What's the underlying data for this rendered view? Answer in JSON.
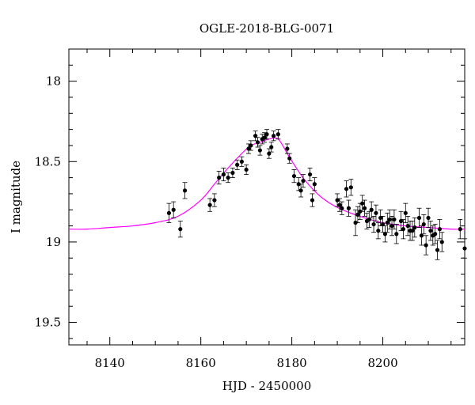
{
  "chart_data": {
    "type": "scatter",
    "title": "OGLE-2018-BLG-0071",
    "xlabel": "HJD - 2450000",
    "ylabel": "I magnitude",
    "xlim": [
      8131,
      8218
    ],
    "ylim": [
      19.64,
      17.8
    ],
    "y_inverted": true,
    "grid": false,
    "xticks": [
      8140,
      8160,
      8180,
      8200
    ],
    "xtick_labels": [
      "8140",
      "8160",
      "8180",
      "8200"
    ],
    "yticks": [
      18,
      18.5,
      19,
      19.5
    ],
    "ytick_labels": [
      "18",
      "18.5",
      "19",
      "19.5"
    ],
    "model_color": "#ff00ff",
    "point_color": "#000000",
    "model_curve": {
      "x": [
        8131,
        8135,
        8140,
        8145,
        8150,
        8155,
        8160,
        8163,
        8166,
        8169,
        8171,
        8173,
        8175,
        8177,
        8179,
        8181,
        8183,
        8186,
        8189,
        8192,
        8196,
        8200,
        8205,
        8210,
        8215,
        8218
      ],
      "y": [
        18.92,
        18.92,
        18.91,
        18.9,
        18.88,
        18.84,
        18.74,
        18.64,
        18.54,
        18.45,
        18.4,
        18.38,
        18.36,
        18.36,
        18.45,
        18.54,
        18.62,
        18.71,
        18.77,
        18.81,
        18.85,
        18.88,
        18.9,
        18.91,
        18.92,
        18.92
      ]
    },
    "series": [
      {
        "x": [
          8153,
          8154,
          8155.5,
          8156.5,
          8162,
          8163,
          8164,
          8165,
          8166,
          8167,
          8168,
          8169,
          8170,
          8170.5,
          8171,
          8172,
          8172.5,
          8173,
          8173.5,
          8174,
          8174.5,
          8175,
          8175.5,
          8176,
          8177,
          8179,
          8179.5,
          8180.5,
          8181.5,
          8182,
          8182.5,
          8184,
          8184.5,
          8185,
          8190,
          8190.5,
          8191,
          8192,
          8192.5,
          8193,
          8194,
          8194.5,
          8195,
          8195.5,
          8196,
          8196.5,
          8197,
          8197.5,
          8198,
          8198.5,
          8199,
          8199.5,
          8200,
          8200.5,
          8201,
          8201.5,
          8202,
          8202.5,
          8203,
          8204,
          8204.5,
          8205,
          8205.5,
          8206,
          8206.5,
          8207,
          8208,
          8208.5,
          8209,
          8209.5,
          8210,
          8210.5,
          8211,
          8211.5,
          8212,
          8212.5,
          8213,
          8217,
          8218
        ],
        "y": [
          18.82,
          18.8,
          18.92,
          18.68,
          18.77,
          18.74,
          18.6,
          18.58,
          18.6,
          18.57,
          18.52,
          18.5,
          18.55,
          18.42,
          18.4,
          18.34,
          18.38,
          18.43,
          18.36,
          18.35,
          18.33,
          18.45,
          18.41,
          18.34,
          18.33,
          18.42,
          18.48,
          18.59,
          18.64,
          18.68,
          18.62,
          18.58,
          18.74,
          18.64,
          18.74,
          18.77,
          18.79,
          18.67,
          18.79,
          18.66,
          18.88,
          18.83,
          18.81,
          18.76,
          18.79,
          18.87,
          18.86,
          18.8,
          18.89,
          18.82,
          18.93,
          18.85,
          18.89,
          18.95,
          18.88,
          18.86,
          18.9,
          18.86,
          18.95,
          18.87,
          18.92,
          18.82,
          18.9,
          18.93,
          18.93,
          18.91,
          18.85,
          18.96,
          18.89,
          19.02,
          18.85,
          18.93,
          18.96,
          18.95,
          19.05,
          18.92,
          19.0,
          18.92,
          19.04
        ],
        "yerr": [
          0.06,
          0.05,
          0.05,
          0.05,
          0.04,
          0.04,
          0.04,
          0.04,
          0.03,
          0.03,
          0.03,
          0.03,
          0.03,
          0.03,
          0.03,
          0.03,
          0.03,
          0.03,
          0.03,
          0.03,
          0.03,
          0.03,
          0.03,
          0.03,
          0.03,
          0.03,
          0.03,
          0.04,
          0.04,
          0.04,
          0.04,
          0.04,
          0.04,
          0.04,
          0.04,
          0.04,
          0.04,
          0.05,
          0.05,
          0.05,
          0.08,
          0.05,
          0.05,
          0.05,
          0.05,
          0.05,
          0.05,
          0.05,
          0.05,
          0.05,
          0.05,
          0.05,
          0.05,
          0.05,
          0.06,
          0.06,
          0.06,
          0.06,
          0.06,
          0.06,
          0.06,
          0.06,
          0.06,
          0.06,
          0.06,
          0.06,
          0.06,
          0.06,
          0.06,
          0.06,
          0.06,
          0.06,
          0.06,
          0.06,
          0.06,
          0.06,
          0.06,
          0.06,
          0.06
        ]
      }
    ]
  }
}
